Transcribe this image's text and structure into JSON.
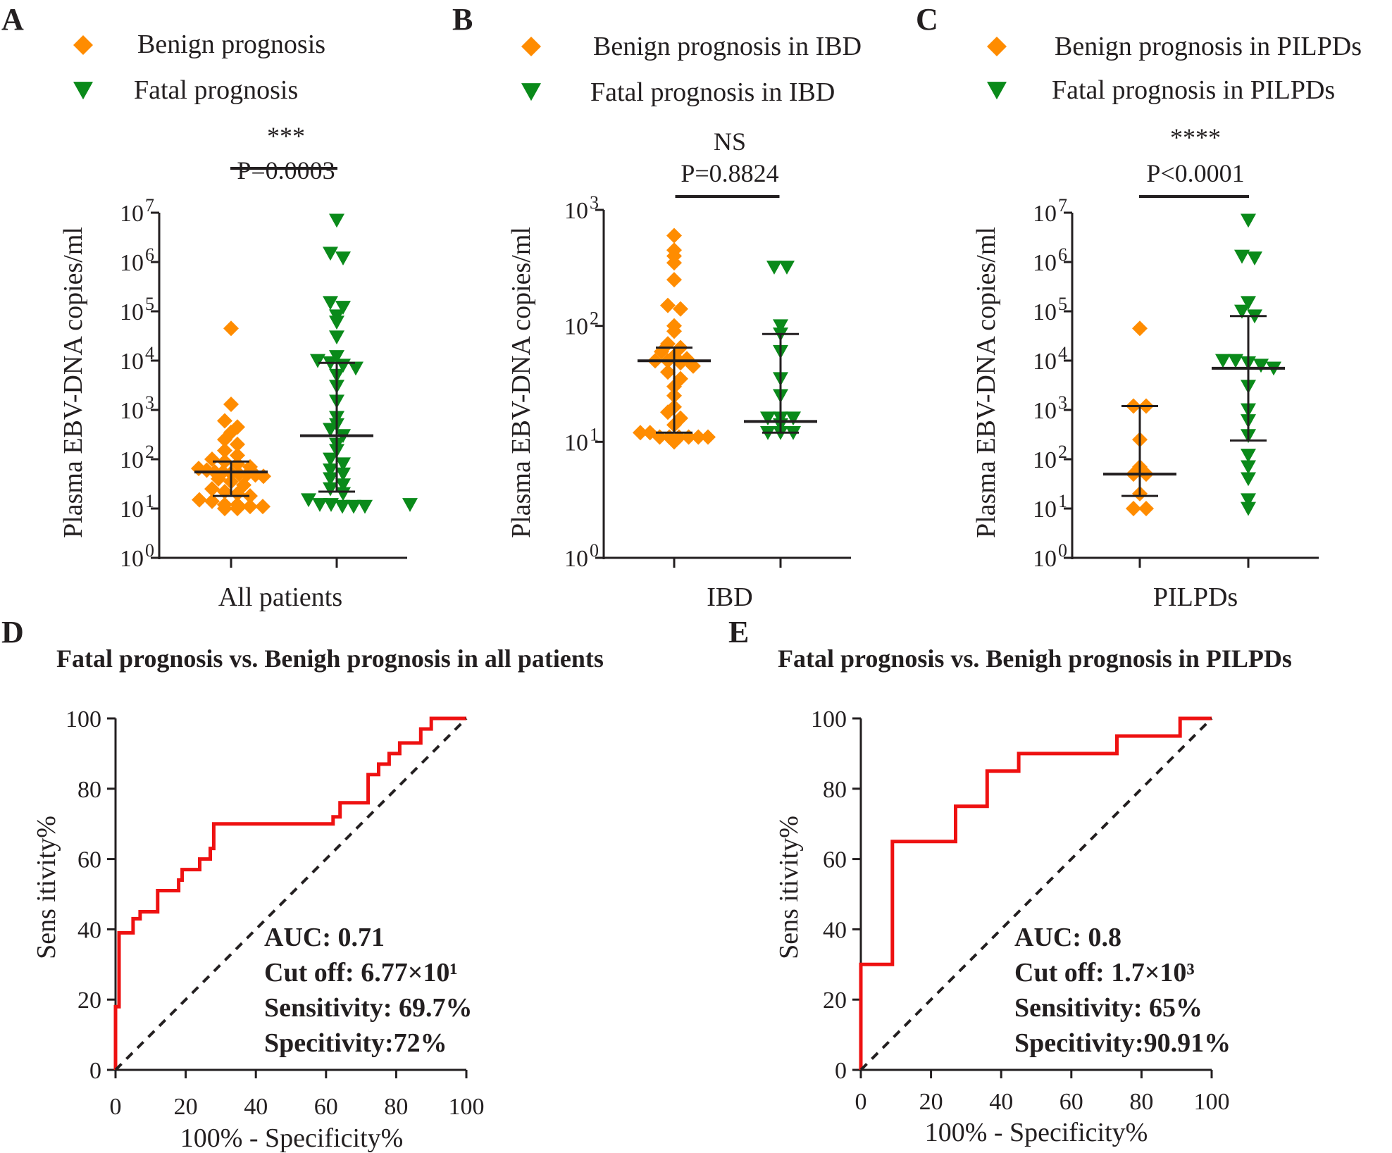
{
  "colors": {
    "benign": "#ff8c00",
    "fatal": "#0a8a1a",
    "roc": "#ee1111",
    "axis": "#231f20"
  },
  "chart_data": [
    {
      "type": "scatter",
      "panel": "A",
      "legend": [
        "Benign prognosis",
        "Fatal prognosis"
      ],
      "xlabel": "All patients",
      "ylabel": "Plasma EBV-DNA copies/ml",
      "yscale": "log10",
      "ylim_exp": [
        0,
        7
      ],
      "yticks_exp": [
        0,
        1,
        2,
        3,
        4,
        5,
        6,
        7
      ],
      "significance": "***",
      "p_value": "P=0.0003",
      "series": [
        {
          "name": "Benign prognosis",
          "marker": "diamond",
          "median": 55,
          "q1": 18,
          "q3": 90,
          "points": [
            45000,
            1300,
            600,
            450,
            350,
            250,
            200,
            150,
            120,
            100,
            90,
            80,
            70,
            65,
            60,
            55,
            55,
            52,
            50,
            50,
            48,
            45,
            40,
            35,
            30,
            25,
            22,
            20,
            18,
            15,
            14,
            12,
            12,
            11,
            11,
            10,
            10
          ]
        },
        {
          "name": "Fatal prognosis",
          "marker": "triangle-down",
          "median": 300,
          "q1": 22,
          "q3": 9000,
          "points": [
            7000000,
            1500000,
            1200000,
            150000,
            120000,
            80000,
            60000,
            30000,
            12000,
            10000,
            9000,
            8000,
            7000,
            5000,
            3000,
            1500,
            700,
            500,
            400,
            300,
            200,
            150,
            100,
            80,
            60,
            50,
            40,
            30,
            25,
            20,
            15,
            12,
            12,
            11,
            11,
            11,
            12
          ]
        }
      ]
    },
    {
      "type": "scatter",
      "panel": "B",
      "legend": [
        "Benign prognosis in IBD",
        "Fatal prognosis in IBD"
      ],
      "xlabel": "IBD",
      "ylabel": "Plasma EBV-DNA copies/ml",
      "yscale": "log10",
      "ylim_exp": [
        0,
        3
      ],
      "yticks_exp": [
        0,
        1,
        2,
        3
      ],
      "significance": "NS",
      "p_value": "P=0.8824",
      "series": [
        {
          "name": "Benign prognosis in IBD",
          "marker": "diamond",
          "median": 50,
          "q1": 12,
          "q3": 65,
          "points": [
            600,
            450,
            400,
            350,
            250,
            150,
            140,
            100,
            90,
            70,
            65,
            60,
            55,
            52,
            50,
            50,
            48,
            45,
            40,
            35,
            30,
            25,
            20,
            18,
            16,
            14,
            12,
            12,
            11,
            11,
            11,
            11,
            11,
            10,
            11
          ]
        },
        {
          "name": "Fatal prognosis in IBD",
          "marker": "triangle-down",
          "median": 15,
          "q1": 12,
          "q3": 85,
          "points": [
            320,
            320,
            100,
            85,
            60,
            35,
            25,
            16,
            16,
            16,
            14,
            12,
            12,
            12
          ]
        }
      ]
    },
    {
      "type": "scatter",
      "panel": "C",
      "legend": [
        "Benign prognosis in PILPDs",
        "Fatal prognosis in PILPDs"
      ],
      "xlabel": "PILPDs",
      "ylabel": "Plasma EBV-DNA copies/ml",
      "yscale": "log10",
      "ylim_exp": [
        0,
        7
      ],
      "yticks_exp": [
        0,
        1,
        2,
        3,
        4,
        5,
        6,
        7
      ],
      "significance": "****",
      "p_value": "P<0.0001",
      "series": [
        {
          "name": "Benign prognosis in PILPDs",
          "marker": "diamond",
          "median": 50,
          "q1": 18,
          "q3": 1200,
          "points": [
            45000,
            1200,
            1200,
            250,
            70,
            50,
            50,
            20,
            10,
            10
          ]
        },
        {
          "name": "Fatal prognosis in PILPDs",
          "marker": "triangle-down",
          "median": 7000,
          "q1": 240,
          "q3": 80000,
          "points": [
            7000000,
            1300000,
            1200000,
            150000,
            100000,
            80000,
            10000,
            10000,
            9000,
            8000,
            7000,
            3000,
            1000,
            600,
            300,
            120,
            70,
            40,
            15,
            10
          ]
        }
      ]
    },
    {
      "type": "line",
      "panel": "D",
      "title": "Fatal prognosis vs. Benigh prognosis in all patients",
      "xlabel": "100% - Specificity%",
      "ylabel": "Sens itivity%",
      "xlim": [
        0,
        100
      ],
      "ylim": [
        0,
        100
      ],
      "xticks": [
        0,
        20,
        40,
        60,
        80,
        100
      ],
      "yticks": [
        0,
        20,
        40,
        60,
        80,
        100
      ],
      "stats": [
        "AUC: 0.71",
        "Cut off: 6.77×10¹",
        "Sensitivity: 69.7%",
        "Specitivity:72%"
      ],
      "series": [
        {
          "name": "ROC",
          "x": [
            0,
            0,
            1,
            1,
            2,
            2,
            5,
            5,
            7,
            7,
            12,
            12,
            18,
            18,
            19,
            19,
            24,
            24,
            27,
            27,
            28,
            28,
            62,
            62,
            64,
            64,
            72,
            72,
            75,
            75,
            78,
            78,
            81,
            81,
            87,
            87,
            90,
            90,
            100
          ],
          "y": [
            0,
            18,
            18,
            39,
            39,
            39,
            39,
            43,
            43,
            45,
            45,
            51,
            51,
            54,
            54,
            57,
            57,
            60,
            60,
            63,
            63,
            70,
            70,
            72,
            72,
            76,
            76,
            84,
            84,
            87,
            87,
            90,
            90,
            93,
            93,
            97,
            97,
            100,
            100
          ]
        },
        {
          "name": "chance",
          "x": [
            0,
            100
          ],
          "y": [
            0,
            100
          ]
        }
      ]
    },
    {
      "type": "line",
      "panel": "E",
      "title": "Fatal prognosis vs. Benigh prognosis in PILPDs",
      "xlabel": "100% - Specificity%",
      "ylabel": "Sens itivity%",
      "xlim": [
        0,
        100
      ],
      "ylim": [
        0,
        100
      ],
      "xticks": [
        0,
        20,
        40,
        60,
        80,
        100
      ],
      "yticks": [
        0,
        20,
        40,
        60,
        80,
        100
      ],
      "stats": [
        "AUC: 0.8",
        "Cut off: 1.7×10³",
        "Sensitivity: 65%",
        "Specitivity:90.91%"
      ],
      "series": [
        {
          "name": "ROC",
          "x": [
            0,
            0,
            9,
            9,
            27,
            27,
            36,
            36,
            45,
            45,
            73,
            73,
            91,
            91,
            100
          ],
          "y": [
            0,
            30,
            30,
            65,
            65,
            75,
            75,
            85,
            85,
            90,
            90,
            95,
            95,
            100,
            100
          ]
        },
        {
          "name": "chance",
          "x": [
            0,
            100
          ],
          "y": [
            0,
            100
          ]
        }
      ]
    }
  ]
}
